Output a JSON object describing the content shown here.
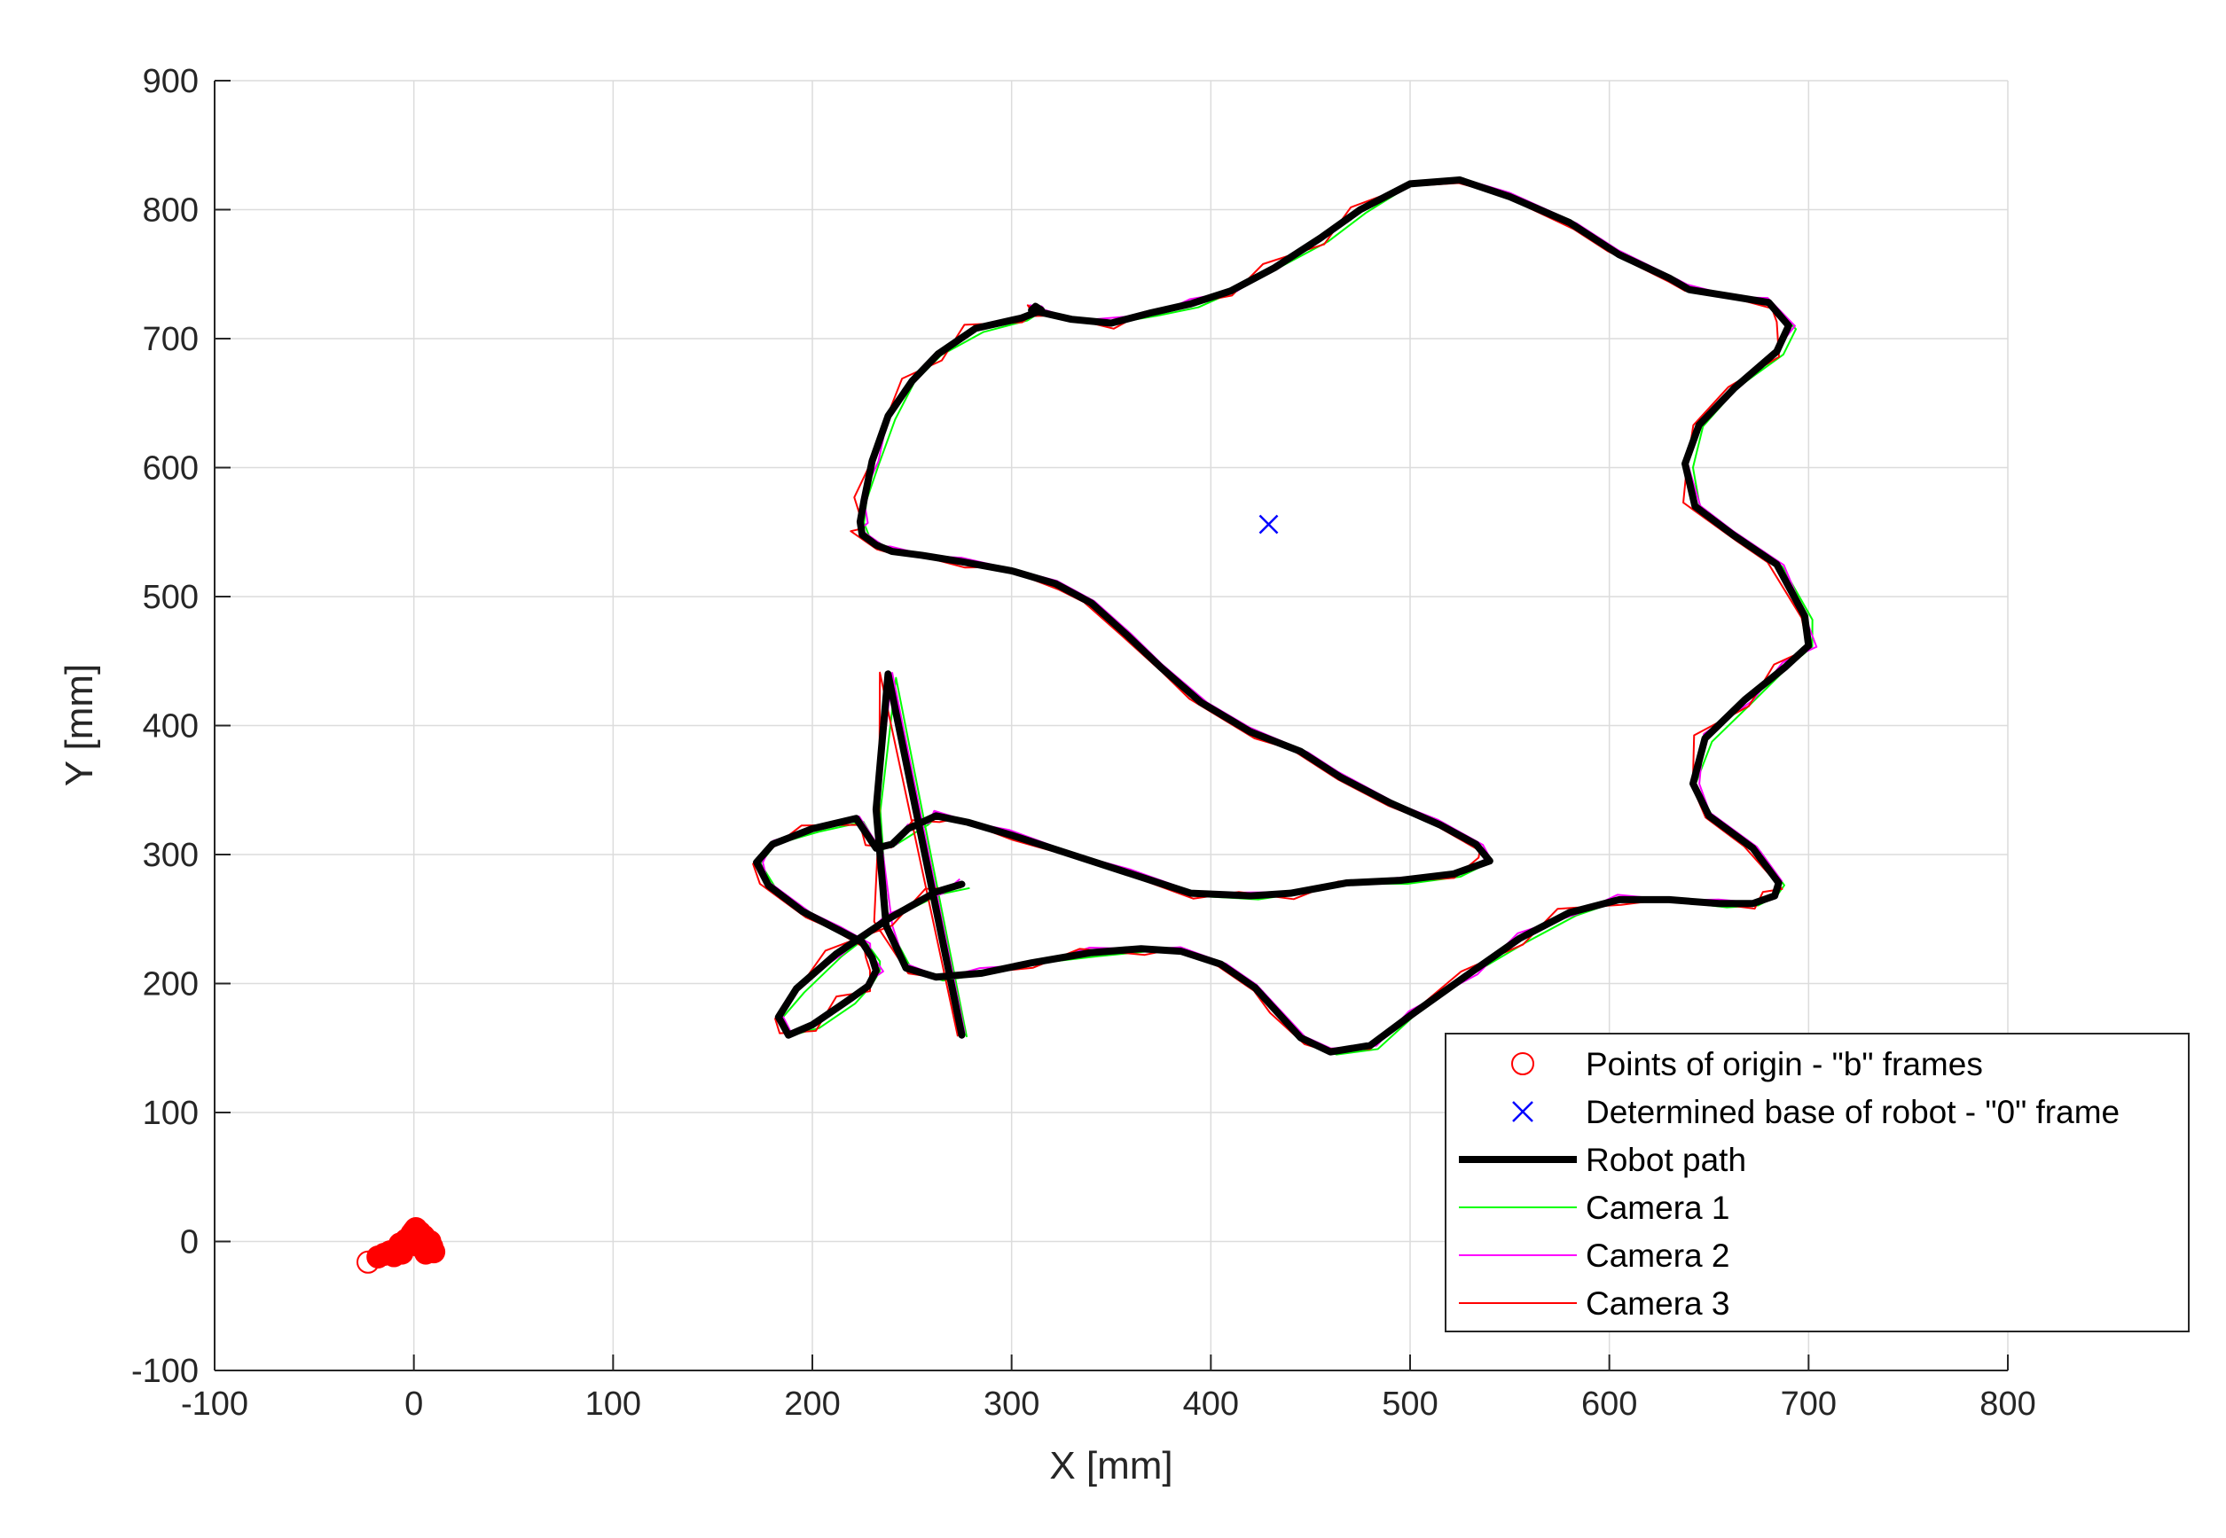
{
  "chart_data": {
    "type": "line",
    "xlabel": "X [mm]",
    "ylabel": "Y [mm]",
    "xlim": [
      -100,
      800
    ],
    "ylim": [
      -100,
      900
    ],
    "xticks": [
      -100,
      0,
      100,
      200,
      300,
      400,
      500,
      600,
      700,
      800
    ],
    "yticks": [
      -100,
      0,
      100,
      200,
      300,
      400,
      500,
      600,
      700,
      800,
      900
    ],
    "grid": true,
    "legend_position": "bottom-right",
    "colors": {
      "origins": "#ff0000",
      "base": "#0000ff",
      "robot_path": "#000000",
      "camera1": "#00ff00",
      "camera2": "#ff00ff",
      "camera3": "#ff0000",
      "grid": "#dcdcdc",
      "axis": "#262626"
    },
    "series": [
      {
        "name": "Points of origin - \"b\" frames",
        "marker": "circle",
        "x": [
          -23,
          -18,
          -15,
          -12,
          -10,
          -8,
          -6,
          -5,
          -3,
          -2,
          -1,
          0,
          1,
          2,
          3,
          4,
          5,
          6,
          7,
          8,
          9,
          10,
          -4,
          0,
          2,
          5,
          -7,
          -1,
          3,
          6,
          8
        ],
        "y": [
          -16,
          -12,
          -10,
          -8,
          -11,
          -6,
          -9,
          -4,
          -2,
          3,
          6,
          8,
          10,
          5,
          2,
          0,
          -3,
          -5,
          -7,
          -6,
          -4,
          -8,
          1,
          -1,
          -3,
          4,
          -2,
          2,
          7,
          -9,
          0
        ]
      },
      {
        "name": "Determined base of robot - \"0\" frame",
        "marker": "x",
        "x": [
          429
        ],
        "y": [
          556
        ]
      },
      {
        "name": "Robot path"
      },
      {
        "name": "Camera 1"
      },
      {
        "name": "Camera 2"
      },
      {
        "name": "Camera 3"
      }
    ],
    "path": {
      "x": [
        275,
        238,
        232,
        237,
        247,
        262,
        285,
        310,
        340,
        365,
        385,
        405,
        422,
        435,
        445,
        460,
        480,
        500,
        530,
        555,
        580,
        605,
        630,
        655,
        672,
        683,
        685,
        672,
        650,
        642,
        648,
        668,
        688,
        700,
        698,
        684,
        662,
        643,
        638,
        645,
        663,
        684,
        690,
        680,
        660,
        640,
        630,
        605,
        580,
        550,
        525,
        500,
        475,
        455,
        432,
        410,
        390,
        370,
        350,
        330,
        310,
        312,
        315,
        305,
        282,
        263,
        250,
        238,
        230,
        226,
        224,
        225,
        232,
        240,
        255,
        275,
        300,
        322,
        340,
        358,
        375,
        395,
        420,
        445,
        465,
        490,
        515,
        533,
        540,
        522,
        495,
        468,
        440,
        420,
        390,
        360,
        330,
        300,
        278,
        262,
        255,
        248,
        240,
        232,
        222,
        200,
        180,
        172,
        178,
        195,
        215,
        225,
        230,
        232,
        228,
        218,
        200,
        188,
        183,
        192,
        212,
        238,
        262,
        275
      ],
      "y": [
        160,
        440,
        335,
        245,
        212,
        205,
        208,
        216,
        224,
        227,
        225,
        215,
        197,
        175,
        158,
        147,
        152,
        175,
        208,
        235,
        255,
        265,
        265,
        262,
        262,
        268,
        278,
        305,
        330,
        355,
        390,
        420,
        445,
        462,
        485,
        525,
        548,
        570,
        603,
        633,
        662,
        690,
        710,
        728,
        733,
        738,
        747,
        765,
        790,
        810,
        823,
        820,
        800,
        778,
        755,
        737,
        727,
        720,
        712,
        715,
        722,
        725,
        722,
        716,
        708,
        688,
        667,
        640,
        605,
        575,
        558,
        548,
        540,
        535,
        532,
        527,
        520,
        510,
        495,
        470,
        445,
        418,
        395,
        380,
        360,
        340,
        323,
        308,
        295,
        285,
        280,
        278,
        270,
        268,
        270,
        285,
        300,
        315,
        325,
        330,
        325,
        320,
        308,
        305,
        328,
        320,
        308,
        294,
        276,
        256,
        240,
        232,
        220,
        210,
        198,
        187,
        168,
        160,
        174,
        196,
        223,
        250,
        271,
        277
      ]
    }
  }
}
